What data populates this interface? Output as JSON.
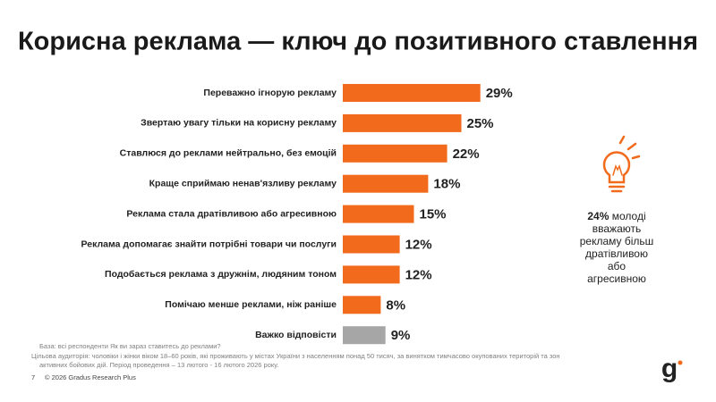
{
  "chart_data": {
    "type": "bar",
    "title": "Корисна реклама — ключ до позитивного ставлення",
    "categories": [
      "Переважно ігнорую рекламу",
      "Звертаю увагу тільки на корисну рекламу",
      "Ставлюся до реклами нейтрально, без емоцій",
      "Краще сприймаю ненав'язливу рекламу",
      "Реклама стала дратівливою або агресивною",
      "Реклама допомагає знайти потрібні товари чи послуги",
      "Подобається реклама з дружнім, людяним тоном",
      "Помічаю менше реклами, ніж раніше",
      "Важко відповісти"
    ],
    "values": [
      29,
      25,
      22,
      18,
      15,
      12,
      12,
      8,
      9
    ],
    "value_labels": [
      "29%",
      "25%",
      "22%",
      "18%",
      "15%",
      "12%",
      "12%",
      "8%",
      "9%"
    ],
    "colors": [
      "#f26a1b",
      "#f26a1b",
      "#f26a1b",
      "#f26a1b",
      "#f26a1b",
      "#f26a1b",
      "#f26a1b",
      "#f26a1b",
      "#a6a6a6"
    ],
    "annotation": {
      "highlight": "24%",
      "first_line": " молоді",
      "lines": [
        "вважають",
        "рекламу більш",
        "дратівливою",
        "або",
        "агресивною"
      ]
    }
  },
  "footer": {
    "base": "База: всі респонденти Як ви зараз ставитесь до реклами?",
    "audience": [
      "Цільова аудиторія: чоловіки і жінки віком 18–60 років, які проживають у містах України з населенням понад 50 тисяч, за винятком тимчасово окупованих територій та зон",
      "активних бойових дій. Період проведення – 13 лютого - 16 лютого 2026 року."
    ],
    "page": "7",
    "copyright": "© 2026 Gradus Research Plus",
    "logo": "g"
  }
}
